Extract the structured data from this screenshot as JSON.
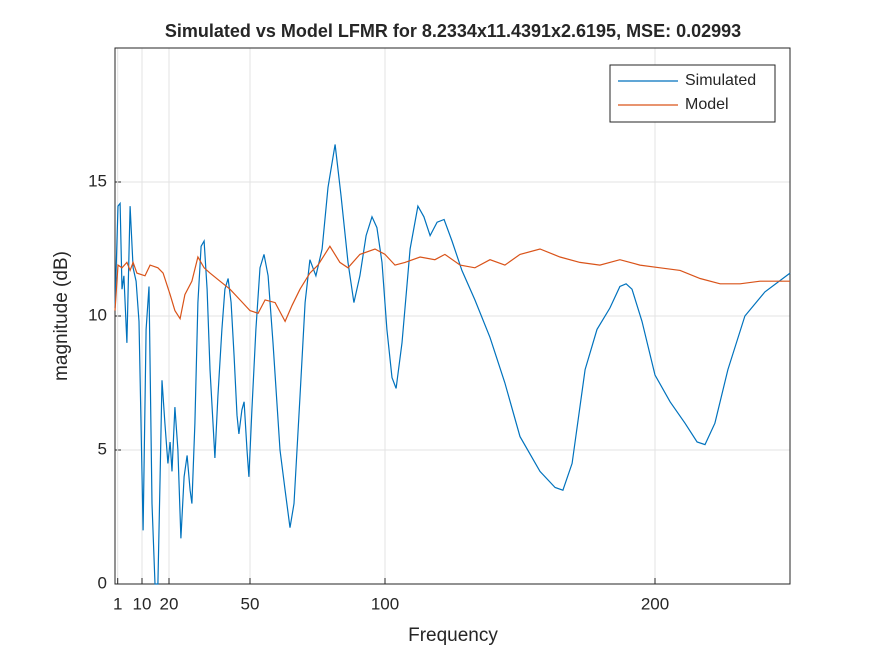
{
  "chart_data": {
    "type": "line",
    "title": "Simulated vs Model LFMR for 8.2334x11.4391x2.6195, MSE: 0.02993",
    "x_label": "Frequency",
    "y_label": "magnitude (dB)",
    "xlim": [
      0,
      250
    ],
    "xticks": [
      1,
      10,
      20,
      50,
      100,
      200
    ],
    "ylim": [
      0,
      20
    ],
    "yticks": [
      0,
      5,
      10,
      15
    ],
    "grid": true,
    "legend": "northeast",
    "series": [
      {
        "name": "Simulated",
        "color": "#0072BD",
        "x": [
          0,
          1.1,
          1.9,
          2.6,
          3.3,
          4.4,
          5.6,
          6.7,
          7.8,
          8.9,
          10.4,
          11.5,
          12.6,
          13.7,
          14.8,
          15.9,
          16.7,
          17.4,
          18.5,
          19.6,
          20.4,
          21.1,
          22.2,
          23.3,
          24.4,
          25.6,
          26.7,
          27.8,
          28.5,
          29.6,
          30.7,
          31.9,
          33,
          34.1,
          35.2,
          36.3,
          37,
          38.1,
          39.6,
          40.7,
          41.9,
          43,
          44.1,
          45.2,
          45.9,
          47,
          47.8,
          48.9,
          49.6,
          50.7,
          52.2,
          53.7,
          55.2,
          56.7,
          58.5,
          61.1,
          63,
          64.8,
          66.3,
          68.5,
          70.4,
          72.2,
          74.4,
          76.7,
          78.9,
          81.5,
          83.7,
          86.3,
          88.5,
          90.7,
          93,
          95.2,
          97,
          98.9,
          100.7,
          102.6,
          104.1,
          106.3,
          109.3,
          112.2,
          114.4,
          116.7,
          119.3,
          121.9,
          124.8,
          128.5,
          133.3,
          138.9,
          144.4,
          150,
          157.4,
          163,
          165.9,
          169.3,
          174.1,
          178.5,
          183.3,
          187,
          189.3,
          191.5,
          195.2,
          200,
          205.6,
          211.1,
          215.6,
          218.5,
          222.2,
          227,
          233.3,
          240.7,
          250
        ],
        "values": [
          10.3,
          14.1,
          14.2,
          11,
          11.5,
          9,
          14.1,
          11.8,
          11.3,
          9.8,
          2,
          9.5,
          11.1,
          3,
          0,
          0,
          4,
          7.6,
          6,
          4.5,
          5.3,
          4.2,
          6.6,
          5,
          1.7,
          4,
          4.8,
          3.5,
          3,
          6,
          10.5,
          12.6,
          12.8,
          11,
          8,
          6,
          4.7,
          7,
          9.5,
          11,
          11.4,
          10.5,
          8.5,
          6.3,
          5.6,
          6.5,
          6.8,
          5,
          4,
          6.5,
          9.5,
          11.8,
          12.3,
          11.5,
          9,
          5,
          3.5,
          2.1,
          3,
          7,
          10.5,
          12.1,
          11.5,
          12.5,
          14.8,
          16.4,
          14.5,
          12,
          10.5,
          11.5,
          13,
          13.7,
          13.3,
          12,
          9.5,
          7.7,
          7.3,
          9,
          12.5,
          14.1,
          13.7,
          13,
          13.5,
          13.6,
          12.8,
          11.7,
          10.6,
          9.2,
          7.5,
          5.5,
          4.2,
          3.6,
          3.5,
          4.5,
          8,
          9.5,
          10.3,
          11.1,
          11.2,
          11,
          9.8,
          7.8,
          6.8,
          6,
          5.3,
          5.2,
          6,
          8,
          10,
          10.9,
          11.6
        ]
      },
      {
        "name": "Model",
        "color": "#D95319",
        "x": [
          0,
          1.1,
          2.6,
          4.4,
          5.6,
          6.7,
          8.1,
          11.1,
          13,
          15.9,
          17.8,
          20.4,
          22.2,
          24.1,
          25.9,
          28.5,
          30.7,
          33,
          35.2,
          38.9,
          42.6,
          46.3,
          50,
          53,
          55.6,
          59.3,
          63,
          65.6,
          68.5,
          72.2,
          75.2,
          79.6,
          83.3,
          86.3,
          90.7,
          96.3,
          100,
          103.7,
          107.4,
          113,
          118.5,
          122.2,
          127.8,
          133.3,
          138.9,
          144.4,
          150,
          157.4,
          164.8,
          172.2,
          179.6,
          187,
          194.4,
          201.9,
          209.3,
          216.7,
          224.1,
          231.5,
          238.9,
          250
        ],
        "values": [
          10.2,
          11.9,
          11.8,
          12,
          11.7,
          12,
          11.6,
          11.5,
          11.9,
          11.8,
          11.6,
          10.8,
          10.2,
          9.9,
          10.8,
          11.3,
          12.2,
          11.8,
          11.6,
          11.3,
          11,
          10.6,
          10.2,
          10.1,
          10.6,
          10.5,
          9.8,
          10.4,
          11,
          11.6,
          11.9,
          12.6,
          12,
          11.8,
          12.3,
          12.5,
          12.3,
          11.9,
          12,
          12.2,
          12.1,
          12.3,
          11.9,
          11.8,
          12.1,
          11.9,
          12.3,
          12.5,
          12.2,
          12,
          11.9,
          12.1,
          11.9,
          11.8,
          11.7,
          11.4,
          11.2,
          11.2,
          11.3,
          11.3
        ]
      }
    ]
  }
}
